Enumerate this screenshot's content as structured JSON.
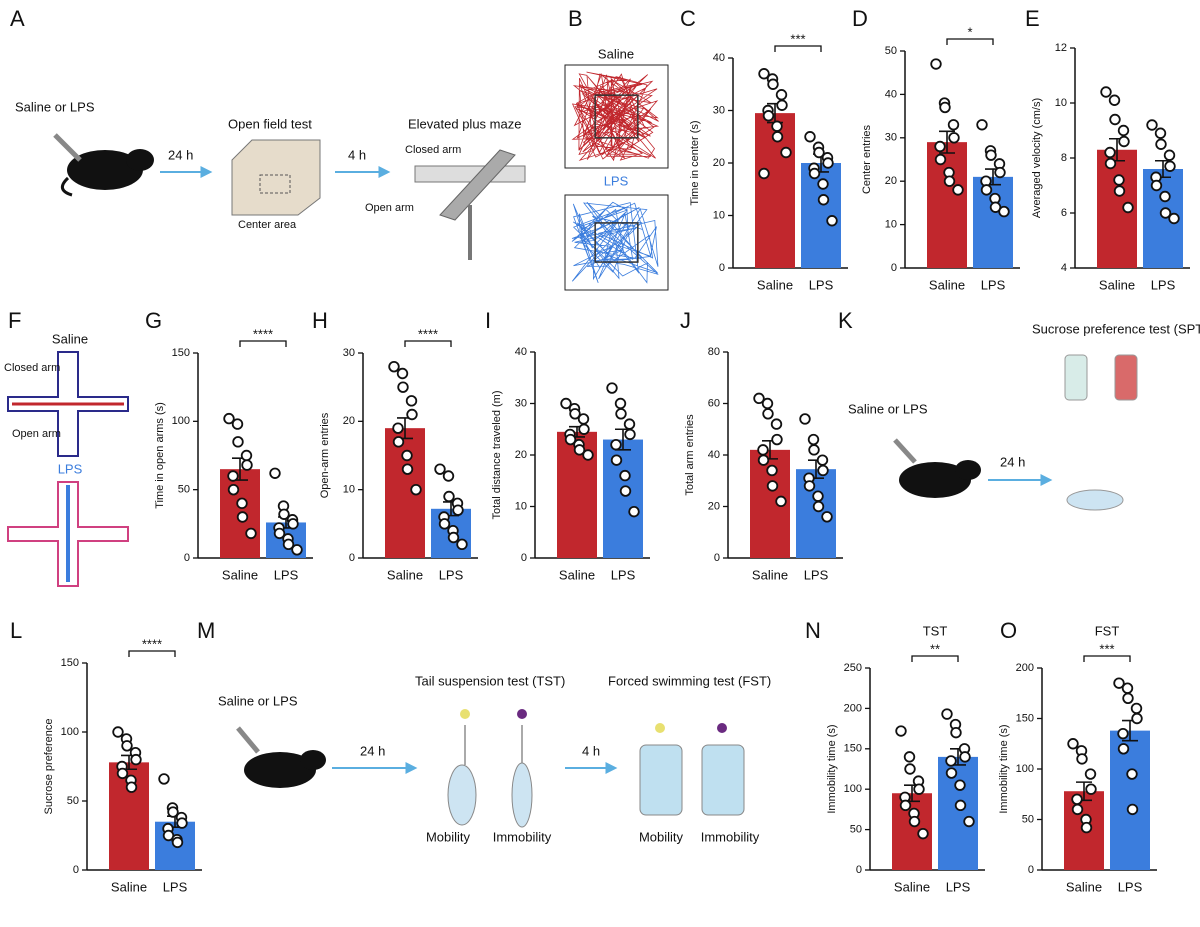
{
  "diagrams": {
    "A": {
      "label": "A",
      "treatment": "Saline or LPS",
      "delay1": "24 h",
      "test1": "Open field test",
      "delay2": "4 h",
      "test2": "Elevated plus maze",
      "closed": "Closed arm",
      "center": "Center area",
      "open": "Open arm"
    },
    "B": {
      "label": "B",
      "saline": "Saline",
      "lps": "LPS"
    },
    "F": {
      "label": "F",
      "saline": "Saline",
      "closed": "Closed arm",
      "open": "Open arm",
      "lps": "LPS"
    },
    "K": {
      "label": "K",
      "treatment": "Saline or LPS",
      "delay": "24 h",
      "test": "Sucrose preference test (SPT)"
    },
    "M": {
      "label": "M",
      "treatment": "Saline or LPS",
      "delay1": "24 h",
      "test1": "Tail suspension test (TST)",
      "test2": "Forced swimming test (FST)",
      "delay2": "4 h",
      "mob1": "Mobility",
      "imm1": "Immobility",
      "mob2": "Mobility",
      "imm2": "Immobility"
    }
  },
  "chart_data": [
    {
      "type": "bar",
      "panel": "C",
      "ylabel": "Time in center (s)",
      "categories": [
        "Saline",
        "LPS"
      ],
      "values": [
        29.5,
        20
      ],
      "errors": [
        1.8,
        1.7
      ],
      "colors": [
        "#c1272d",
        "#3b7ddd"
      ],
      "points": [
        [
          37,
          36,
          35,
          33,
          31,
          30,
          29,
          27,
          25,
          22,
          18
        ],
        [
          25,
          23,
          22,
          21,
          20,
          19,
          18,
          16,
          13,
          9
        ]
      ],
      "ylim": [
        0,
        40
      ],
      "yticks": [
        0,
        10,
        20,
        30,
        40
      ],
      "significance": "***"
    },
    {
      "type": "bar",
      "panel": "D",
      "ylabel": "Center entries",
      "categories": [
        "Saline",
        "LPS"
      ],
      "values": [
        29,
        21
      ],
      "errors": [
        2.5,
        1.8
      ],
      "colors": [
        "#c1272d",
        "#3b7ddd"
      ],
      "points": [
        [
          47,
          38,
          37,
          33,
          30,
          28,
          25,
          22,
          20,
          18
        ],
        [
          33,
          27,
          26,
          24,
          22,
          20,
          18,
          16,
          14,
          13
        ]
      ],
      "ylim": [
        0,
        50
      ],
      "yticks": [
        0,
        10,
        20,
        30,
        40,
        50
      ],
      "significance": "*"
    },
    {
      "type": "bar",
      "panel": "E",
      "ylabel": "Averaged velocity (cm/s)",
      "categories": [
        "Saline",
        "LPS"
      ],
      "values": [
        8.3,
        7.6
      ],
      "errors": [
        0.4,
        0.3
      ],
      "colors": [
        "#c1272d",
        "#3b7ddd"
      ],
      "points": [
        [
          10.4,
          10.1,
          9.4,
          9,
          8.6,
          8.2,
          7.8,
          7.2,
          6.8,
          6.2
        ],
        [
          9.2,
          8.9,
          8.5,
          8.1,
          7.7,
          7.3,
          7,
          6.6,
          6,
          5.8
        ]
      ],
      "ylim": [
        4,
        12
      ],
      "yticks": [
        4,
        6,
        8,
        10,
        12
      ]
    },
    {
      "type": "bar",
      "panel": "G",
      "ylabel": "Time in open arms (s)",
      "categories": [
        "Saline",
        "LPS"
      ],
      "values": [
        65,
        26
      ],
      "errors": [
        8,
        4
      ],
      "colors": [
        "#c1272d",
        "#3b7ddd"
      ],
      "points": [
        [
          102,
          98,
          85,
          75,
          68,
          60,
          50,
          40,
          30,
          18
        ],
        [
          62,
          38,
          32,
          28,
          25,
          22,
          18,
          14,
          10,
          6
        ]
      ],
      "ylim": [
        0,
        150
      ],
      "yticks": [
        0,
        50,
        100,
        150
      ],
      "significance": "****"
    },
    {
      "type": "bar",
      "panel": "H",
      "ylabel": "Open-arm entries",
      "categories": [
        "Saline",
        "LPS"
      ],
      "values": [
        19,
        7.2
      ],
      "errors": [
        1.5,
        1
      ],
      "colors": [
        "#c1272d",
        "#3b7ddd"
      ],
      "points": [
        [
          28,
          27,
          25,
          23,
          21,
          19,
          17,
          15,
          13,
          10
        ],
        [
          13,
          12,
          9,
          8,
          7,
          6,
          5,
          4,
          3,
          2
        ]
      ],
      "ylim": [
        0,
        30
      ],
      "yticks": [
        0,
        10,
        20,
        30
      ],
      "significance": "****"
    },
    {
      "type": "bar",
      "panel": "I",
      "ylabel": "Total distance traveled (m)",
      "categories": [
        "Saline",
        "LPS"
      ],
      "values": [
        24.5,
        23
      ],
      "errors": [
        1,
        2
      ],
      "colors": [
        "#c1272d",
        "#3b7ddd"
      ],
      "points": [
        [
          30,
          29,
          28,
          27,
          25,
          24,
          23,
          22,
          21,
          20
        ],
        [
          33,
          30,
          28,
          26,
          24,
          22,
          19,
          16,
          13,
          9
        ]
      ],
      "ylim": [
        0,
        40
      ],
      "yticks": [
        0,
        10,
        20,
        30,
        40
      ]
    },
    {
      "type": "bar",
      "panel": "J",
      "ylabel": "Total arm entries",
      "categories": [
        "Saline",
        "LPS"
      ],
      "values": [
        42,
        34.5
      ],
      "errors": [
        3.5,
        3.5
      ],
      "colors": [
        "#c1272d",
        "#3b7ddd"
      ],
      "points": [
        [
          62,
          60,
          56,
          52,
          46,
          42,
          38,
          34,
          28,
          22
        ],
        [
          54,
          46,
          42,
          38,
          34,
          31,
          28,
          24,
          20,
          16
        ]
      ],
      "ylim": [
        0,
        80
      ],
      "yticks": [
        0,
        20,
        40,
        60,
        80
      ]
    },
    {
      "type": "bar",
      "panel": "L",
      "ylabel": "Sucrose preference",
      "categories": [
        "Saline",
        "LPS"
      ],
      "values": [
        78,
        35
      ],
      "errors": [
        5,
        4
      ],
      "colors": [
        "#c1272d",
        "#3b7ddd"
      ],
      "points": [
        [
          100,
          95,
          90,
          85,
          80,
          75,
          70,
          65,
          60
        ],
        [
          66,
          45,
          42,
          38,
          34,
          30,
          25,
          22,
          20
        ]
      ],
      "ylim": [
        0,
        150
      ],
      "yticks": [
        0,
        50,
        100,
        150
      ],
      "significance": "****"
    },
    {
      "type": "bar",
      "panel": "N",
      "title": "TST",
      "ylabel": "Immobility time (s)",
      "categories": [
        "Saline",
        "LPS"
      ],
      "values": [
        95,
        140
      ],
      "errors": [
        10,
        10
      ],
      "colors": [
        "#c1272d",
        "#3b7ddd"
      ],
      "points": [
        [
          172,
          140,
          125,
          110,
          100,
          90,
          80,
          70,
          60,
          45
        ],
        [
          193,
          180,
          170,
          150,
          140,
          135,
          120,
          105,
          80,
          60
        ]
      ],
      "ylim": [
        0,
        250
      ],
      "yticks": [
        0,
        50,
        100,
        150,
        200,
        250
      ],
      "significance": "**"
    },
    {
      "type": "bar",
      "panel": "O",
      "title": "FST",
      "ylabel": "Immobility time (s)",
      "categories": [
        "Saline",
        "LPS"
      ],
      "values": [
        78,
        138
      ],
      "errors": [
        9,
        10
      ],
      "colors": [
        "#c1272d",
        "#3b7ddd"
      ],
      "points": [
        [
          125,
          118,
          110,
          95,
          80,
          70,
          60,
          50,
          42
        ],
        [
          185,
          180,
          170,
          160,
          150,
          135,
          120,
          95,
          60
        ]
      ],
      "ylim": [
        0,
        200
      ],
      "yticks": [
        0,
        50,
        100,
        150,
        200
      ],
      "significance": "***"
    }
  ]
}
